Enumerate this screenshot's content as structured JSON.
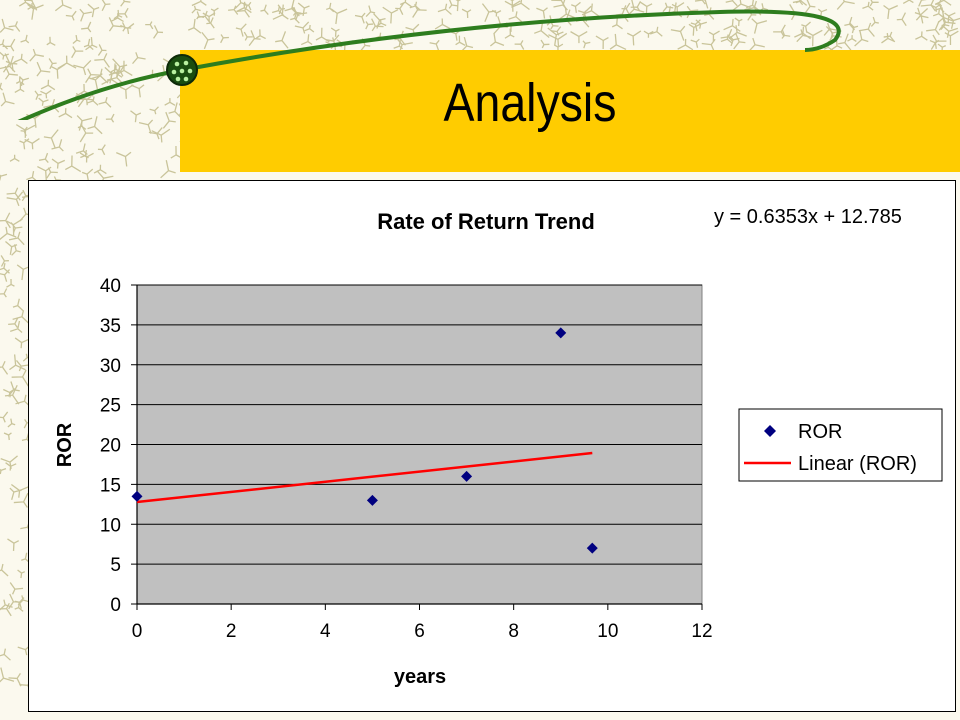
{
  "slide": {
    "title": "Analysis"
  },
  "chart_data": {
    "type": "scatter",
    "title": "Rate of Return Trend",
    "xlabel": "years",
    "ylabel": "ROR",
    "xlim": [
      0,
      12
    ],
    "ylim": [
      0,
      40
    ],
    "xticks": [
      0,
      2,
      4,
      6,
      8,
      10,
      12
    ],
    "yticks": [
      0,
      5,
      10,
      15,
      20,
      25,
      30,
      35,
      40
    ],
    "grid": "horizontal",
    "legend_position": "right",
    "series": [
      {
        "name": "ROR",
        "type": "scatter",
        "marker": "diamond",
        "color": "#000080",
        "points": [
          {
            "x": 0,
            "y": 13.5
          },
          {
            "x": 5,
            "y": 13
          },
          {
            "x": 7,
            "y": 16
          },
          {
            "x": 9,
            "y": 34
          },
          {
            "x": 9.67,
            "y": 7
          }
        ]
      },
      {
        "name": "Linear (ROR)",
        "type": "trendline",
        "color": "#ff0000",
        "slope": 0.6353,
        "intercept": 12.785,
        "x_range": [
          0,
          9.67
        ]
      }
    ],
    "equation": "y = 0.6353x + 12.785",
    "plot_background": "#c0c0c0"
  }
}
